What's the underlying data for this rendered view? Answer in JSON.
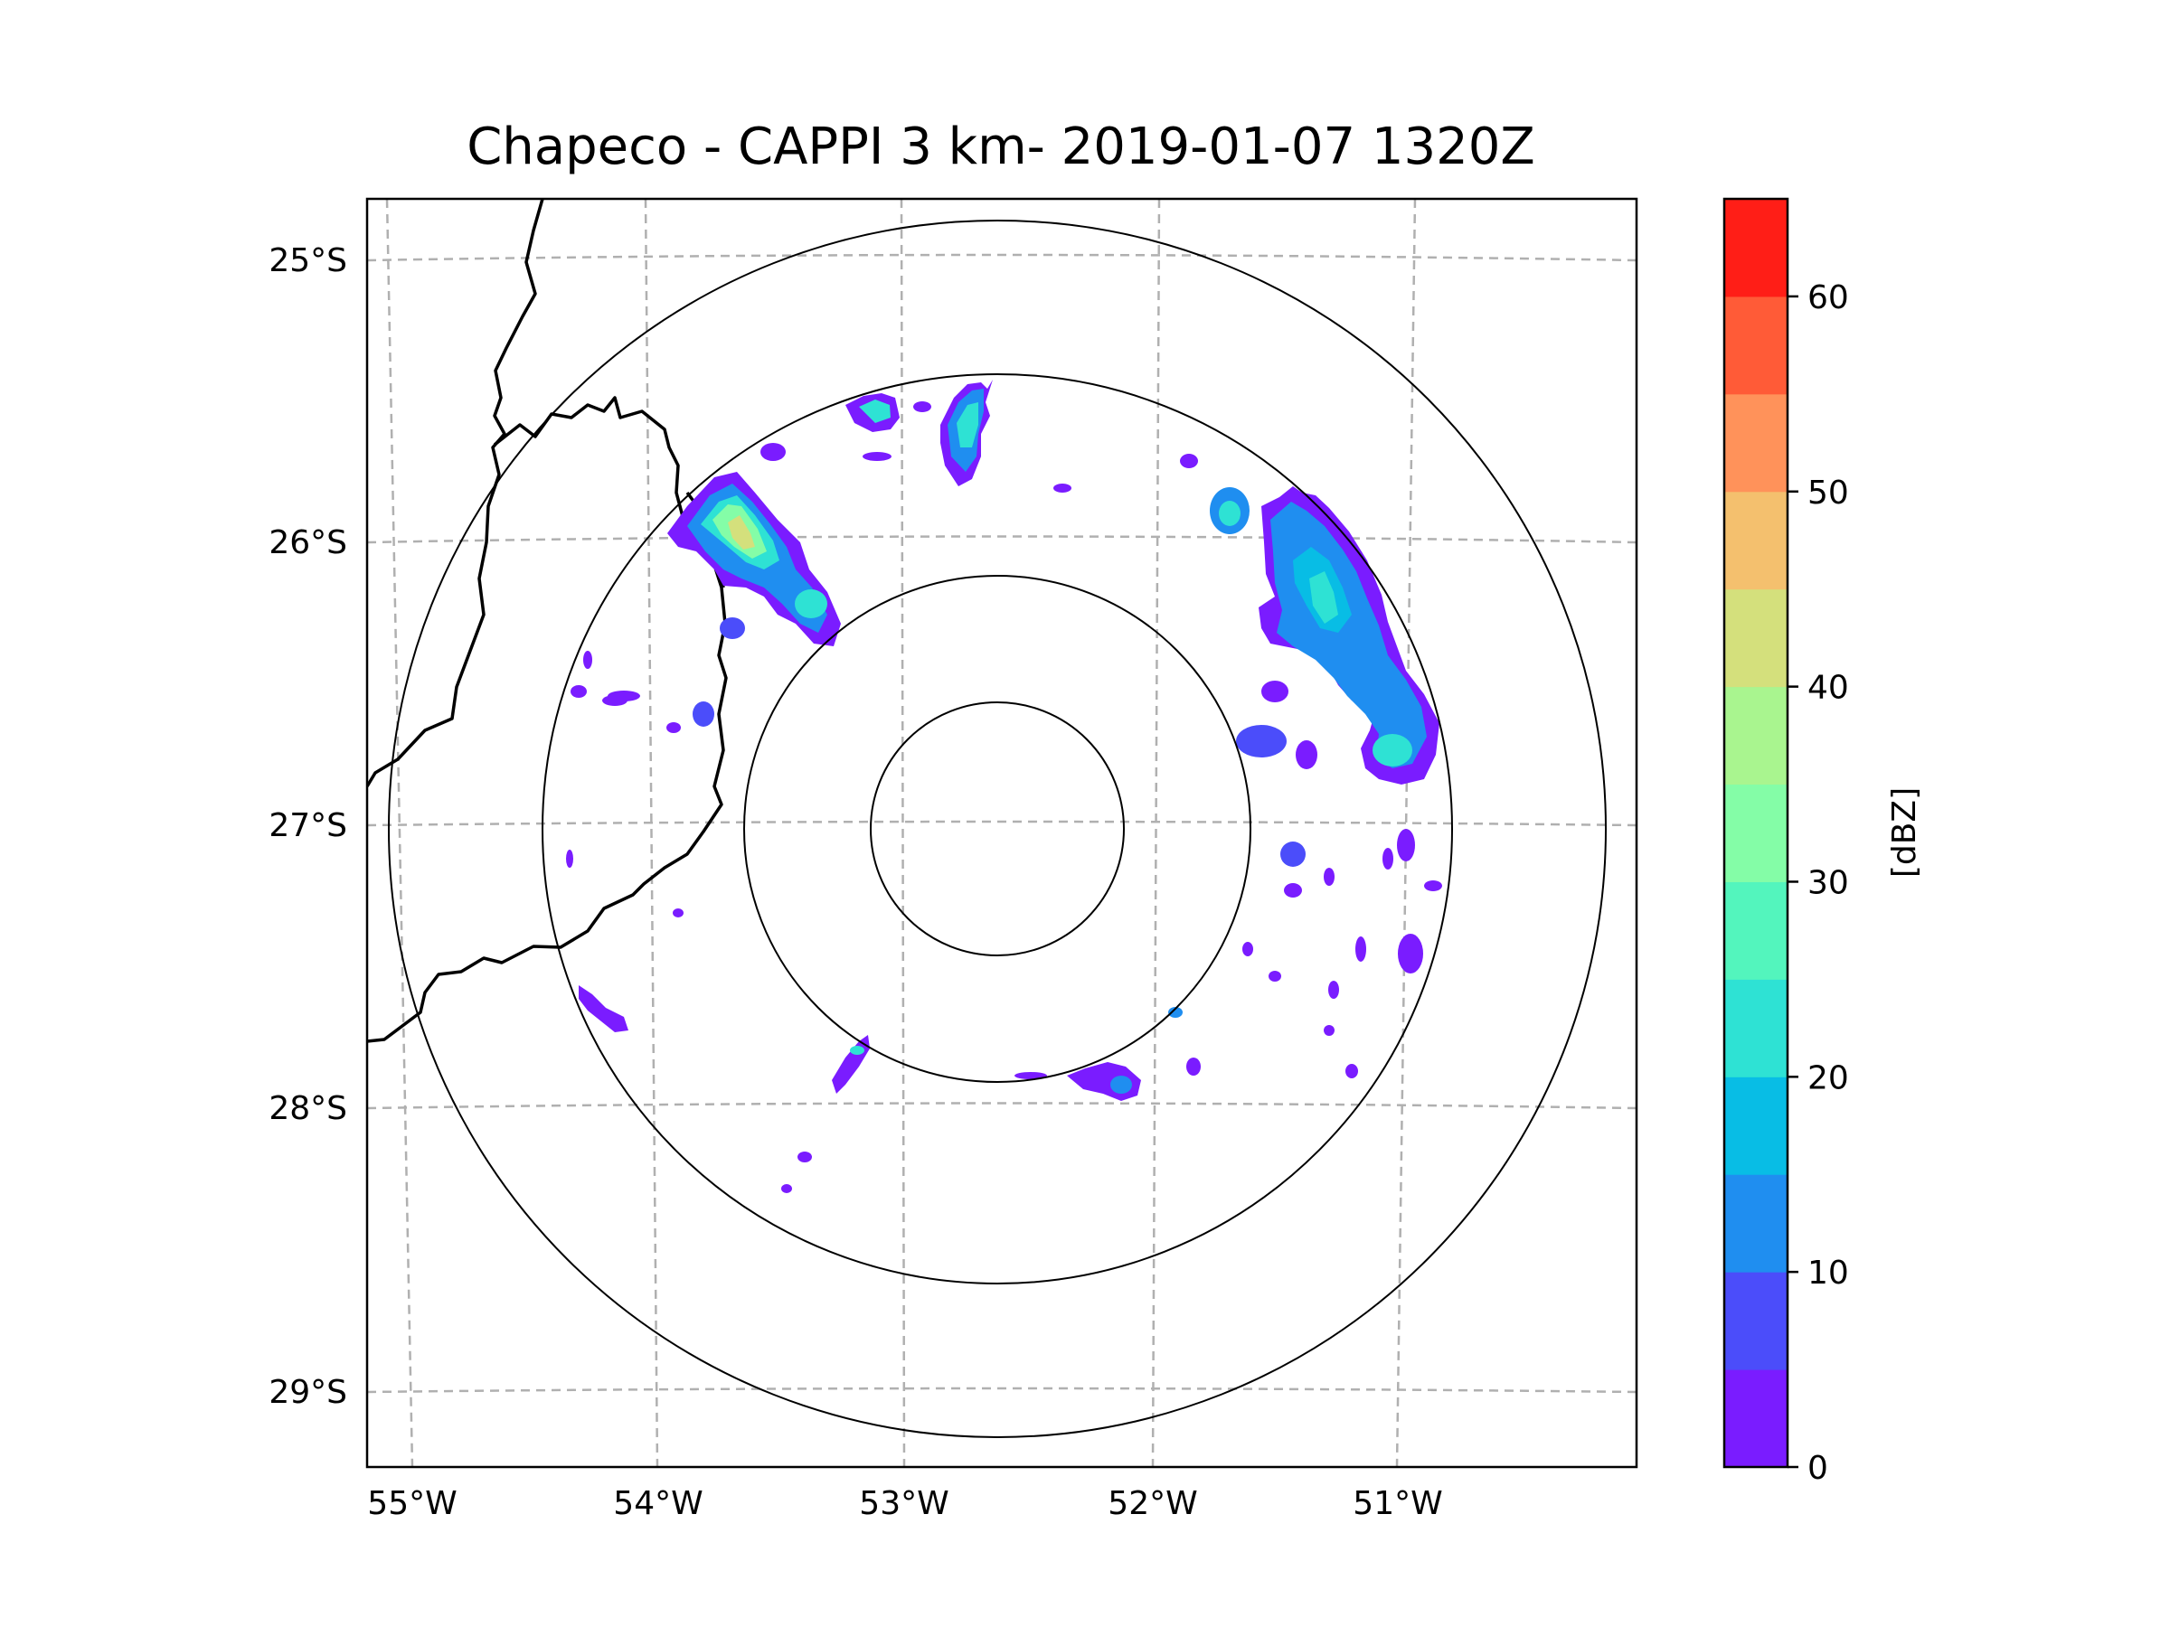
{
  "title": "Chapeco - CAPPI 3 km- 2019-01-07 1320Z",
  "map": {
    "lat_labels": [
      "25°S",
      "26°S",
      "27°S",
      "28°S",
      "29°S"
    ],
    "lon_labels": [
      "55°W",
      "54°W",
      "53°W",
      "52°W",
      "51°W"
    ],
    "radar_center": {
      "lon": -52.6,
      "lat": -27.03
    },
    "range_rings": 4
  },
  "colorbar": {
    "label": "[dBZ]",
    "ticks": [
      "0",
      "10",
      "20",
      "30",
      "40",
      "50",
      "60"
    ],
    "levels": [
      0,
      5,
      10,
      15,
      20,
      25,
      30,
      35,
      40,
      45,
      50,
      55,
      60,
      65
    ],
    "colors": [
      "#7a1cff",
      "#4b4dfa",
      "#1f8ef0",
      "#08bde5",
      "#2ee2d4",
      "#53f5bd",
      "#84fda7",
      "#a9f58f",
      "#d4e07c",
      "#f4c06e",
      "#ff925a",
      "#ff5b37",
      "#ff1e17"
    ]
  },
  "echo_palette": {
    "weak": "#7a1cff",
    "light": "#4b4dfa",
    "moderate": "#1f8ef0",
    "cyan": "#08bde5",
    "teal": "#2ee2d4",
    "green": "#84fda7",
    "yellow": "#d4e07c"
  }
}
